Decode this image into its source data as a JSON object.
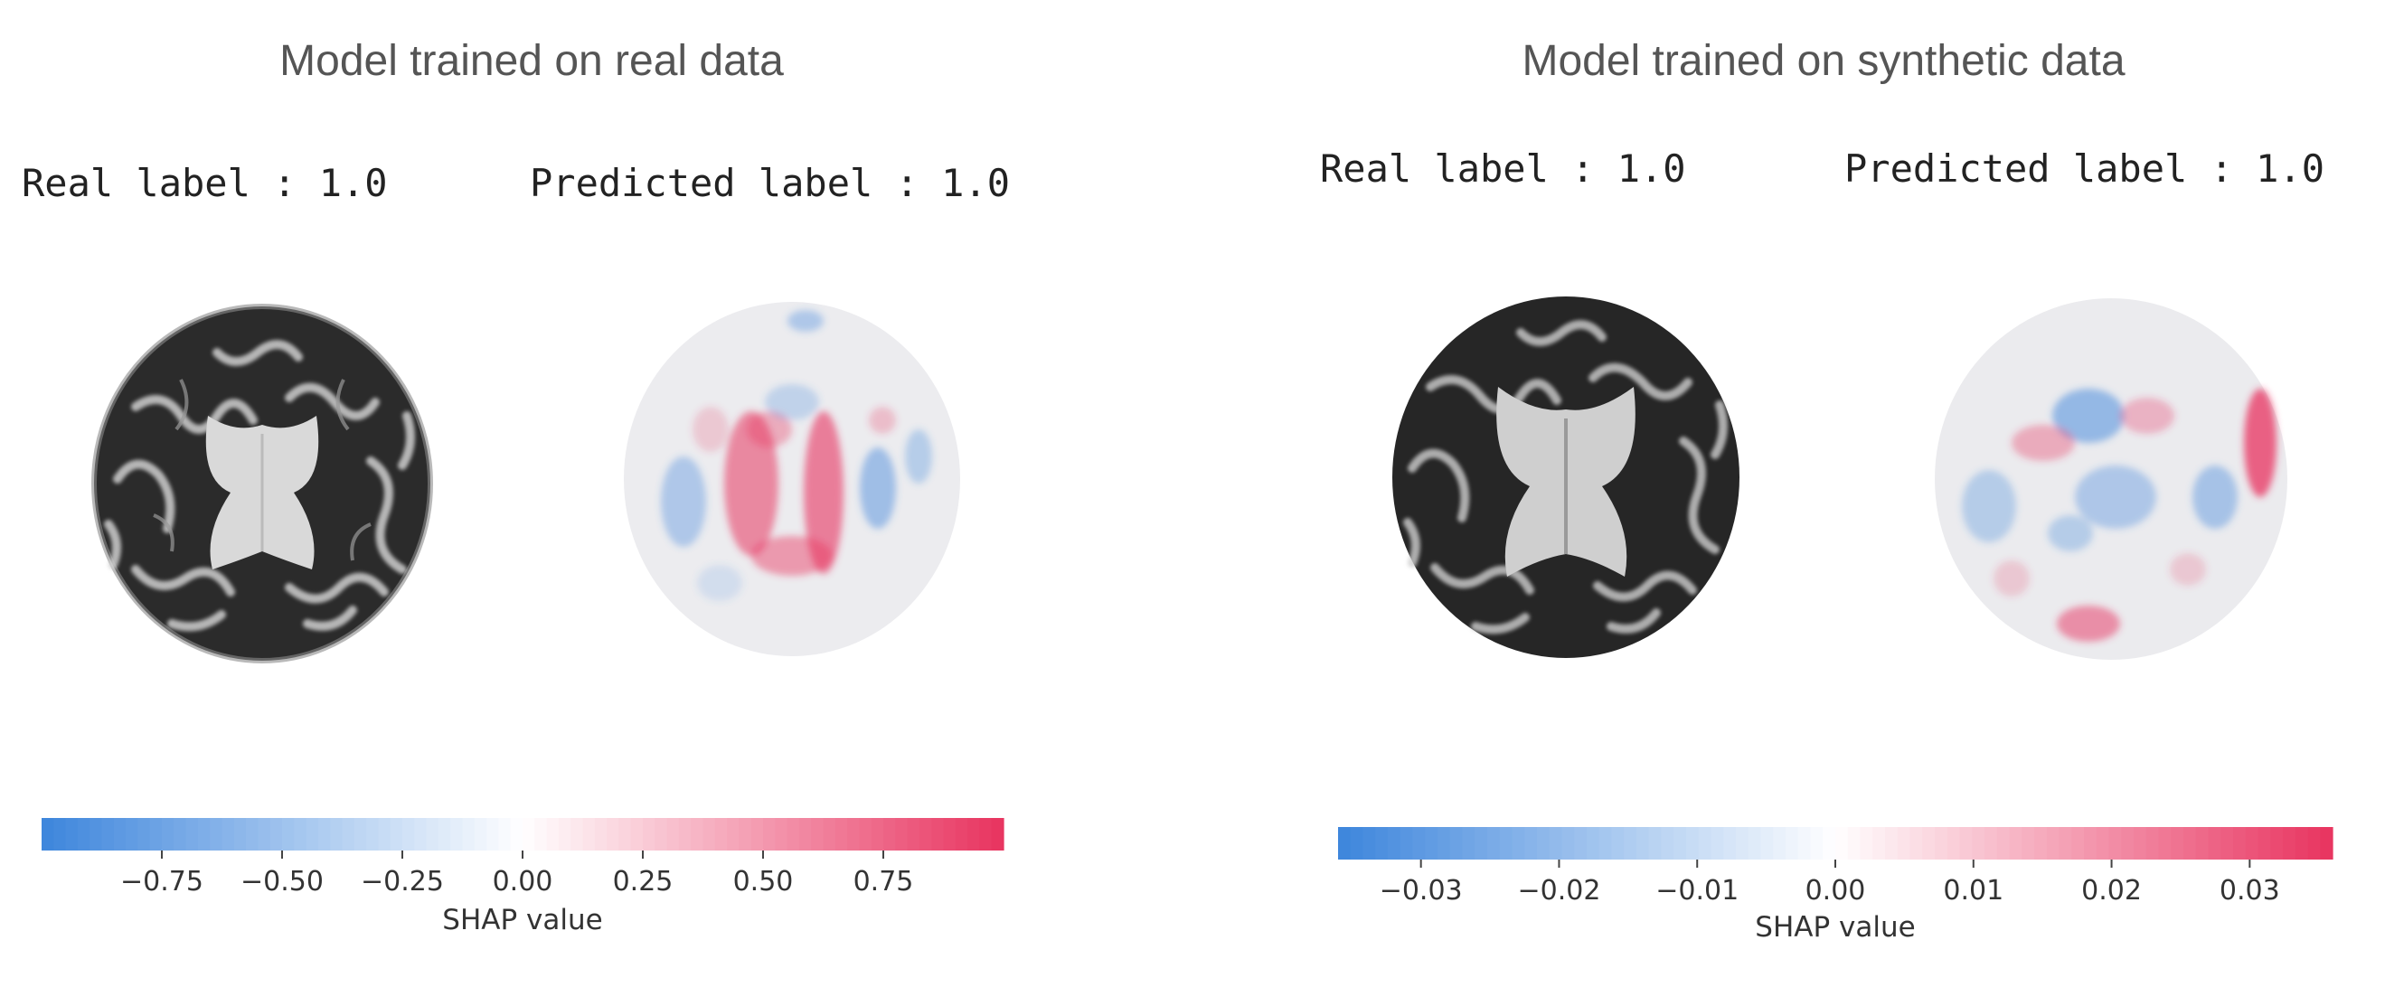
{
  "panels": [
    {
      "title": "Model trained on real data",
      "real_label": "Real label : 1.0",
      "predicted_label": "Predicted label : 1.0",
      "colorbar": {
        "label": "SHAP value",
        "min": -1.0,
        "max": 1.0,
        "ticks": [
          "−0.75",
          "−0.50",
          "−0.25",
          "0.00",
          "0.25",
          "0.50",
          "0.75"
        ],
        "tick_values": [
          -0.75,
          -0.5,
          -0.25,
          0.0,
          0.25,
          0.5,
          0.75
        ]
      }
    },
    {
      "title": "Model trained on synthetic data",
      "real_label": "Real label : 1.0",
      "predicted_label": "Predicted label : 1.0",
      "colorbar": {
        "label": "SHAP value",
        "min": -0.036,
        "max": 0.036,
        "ticks": [
          "−0.03",
          "−0.02",
          "−0.01",
          "0.00",
          "0.01",
          "0.02",
          "0.03"
        ],
        "tick_values": [
          -0.03,
          -0.02,
          -0.01,
          0.0,
          0.01,
          0.02,
          0.03
        ]
      }
    }
  ],
  "colors": {
    "negative": "#3d85dc",
    "zero": "#ffffff",
    "positive": "#e8335f"
  }
}
